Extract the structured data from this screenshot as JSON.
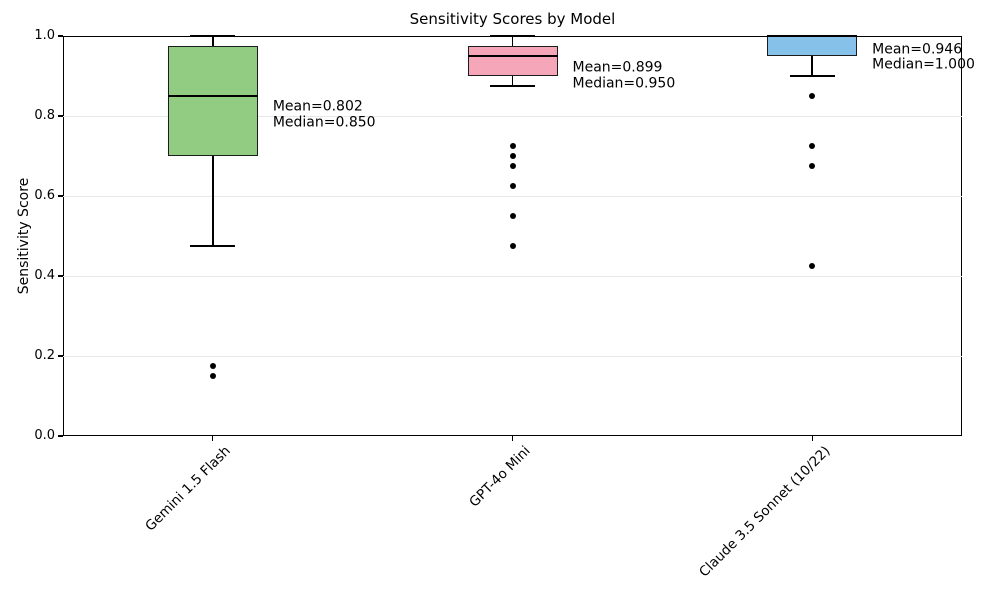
{
  "chart_data": {
    "type": "boxplot",
    "title": "Sensitivity Scores by Model",
    "ylabel": "Sensitivity Score",
    "xlabel": "",
    "ylim": [
      0.0,
      1.0
    ],
    "yticks": [
      0.0,
      0.2,
      0.4,
      0.6,
      0.8,
      1.0
    ],
    "grid": "horizontal",
    "legend": "none",
    "categories": [
      "Gemini 1.5 Flash",
      "GPT-4o Mini",
      "Claude 3.5 Sonnet (10/22)"
    ],
    "series": [
      {
        "model": "Gemini 1.5 Flash",
        "box_color": "#92CB82",
        "whisker_low": 0.475,
        "q1": 0.7,
        "median": 0.85,
        "q3": 0.975,
        "whisker_high": 1.0,
        "mean": 0.802,
        "outliers": [
          0.175,
          0.15
        ],
        "annotation_lines": [
          "Mean=0.802",
          "Median=0.850"
        ]
      },
      {
        "model": "GPT-4o Mini",
        "box_color": "#F5A6B9",
        "whisker_low": 0.875,
        "q1": 0.9,
        "median": 0.95,
        "q3": 0.975,
        "whisker_high": 1.0,
        "mean": 0.899,
        "outliers": [
          0.725,
          0.7,
          0.675,
          0.625,
          0.55,
          0.475
        ],
        "annotation_lines": [
          "Mean=0.899",
          "Median=0.950"
        ]
      },
      {
        "model": "Claude 3.5 Sonnet (10/22)",
        "box_color": "#85C1E9",
        "whisker_low": 0.9,
        "q1": 0.95,
        "median": 1.0,
        "q3": 1.0,
        "whisker_high": 1.0,
        "mean": 0.946,
        "outliers": [
          0.85,
          0.725,
          0.675,
          0.425
        ],
        "annotation_lines": [
          "Mean=0.946",
          "Median=1.000"
        ]
      }
    ],
    "style": {
      "edge_color": "#1c1c1c",
      "median_color": "#000000",
      "grid_color": "#e7e7e7",
      "flier_color": "#000000",
      "background": "#ffffff"
    }
  }
}
